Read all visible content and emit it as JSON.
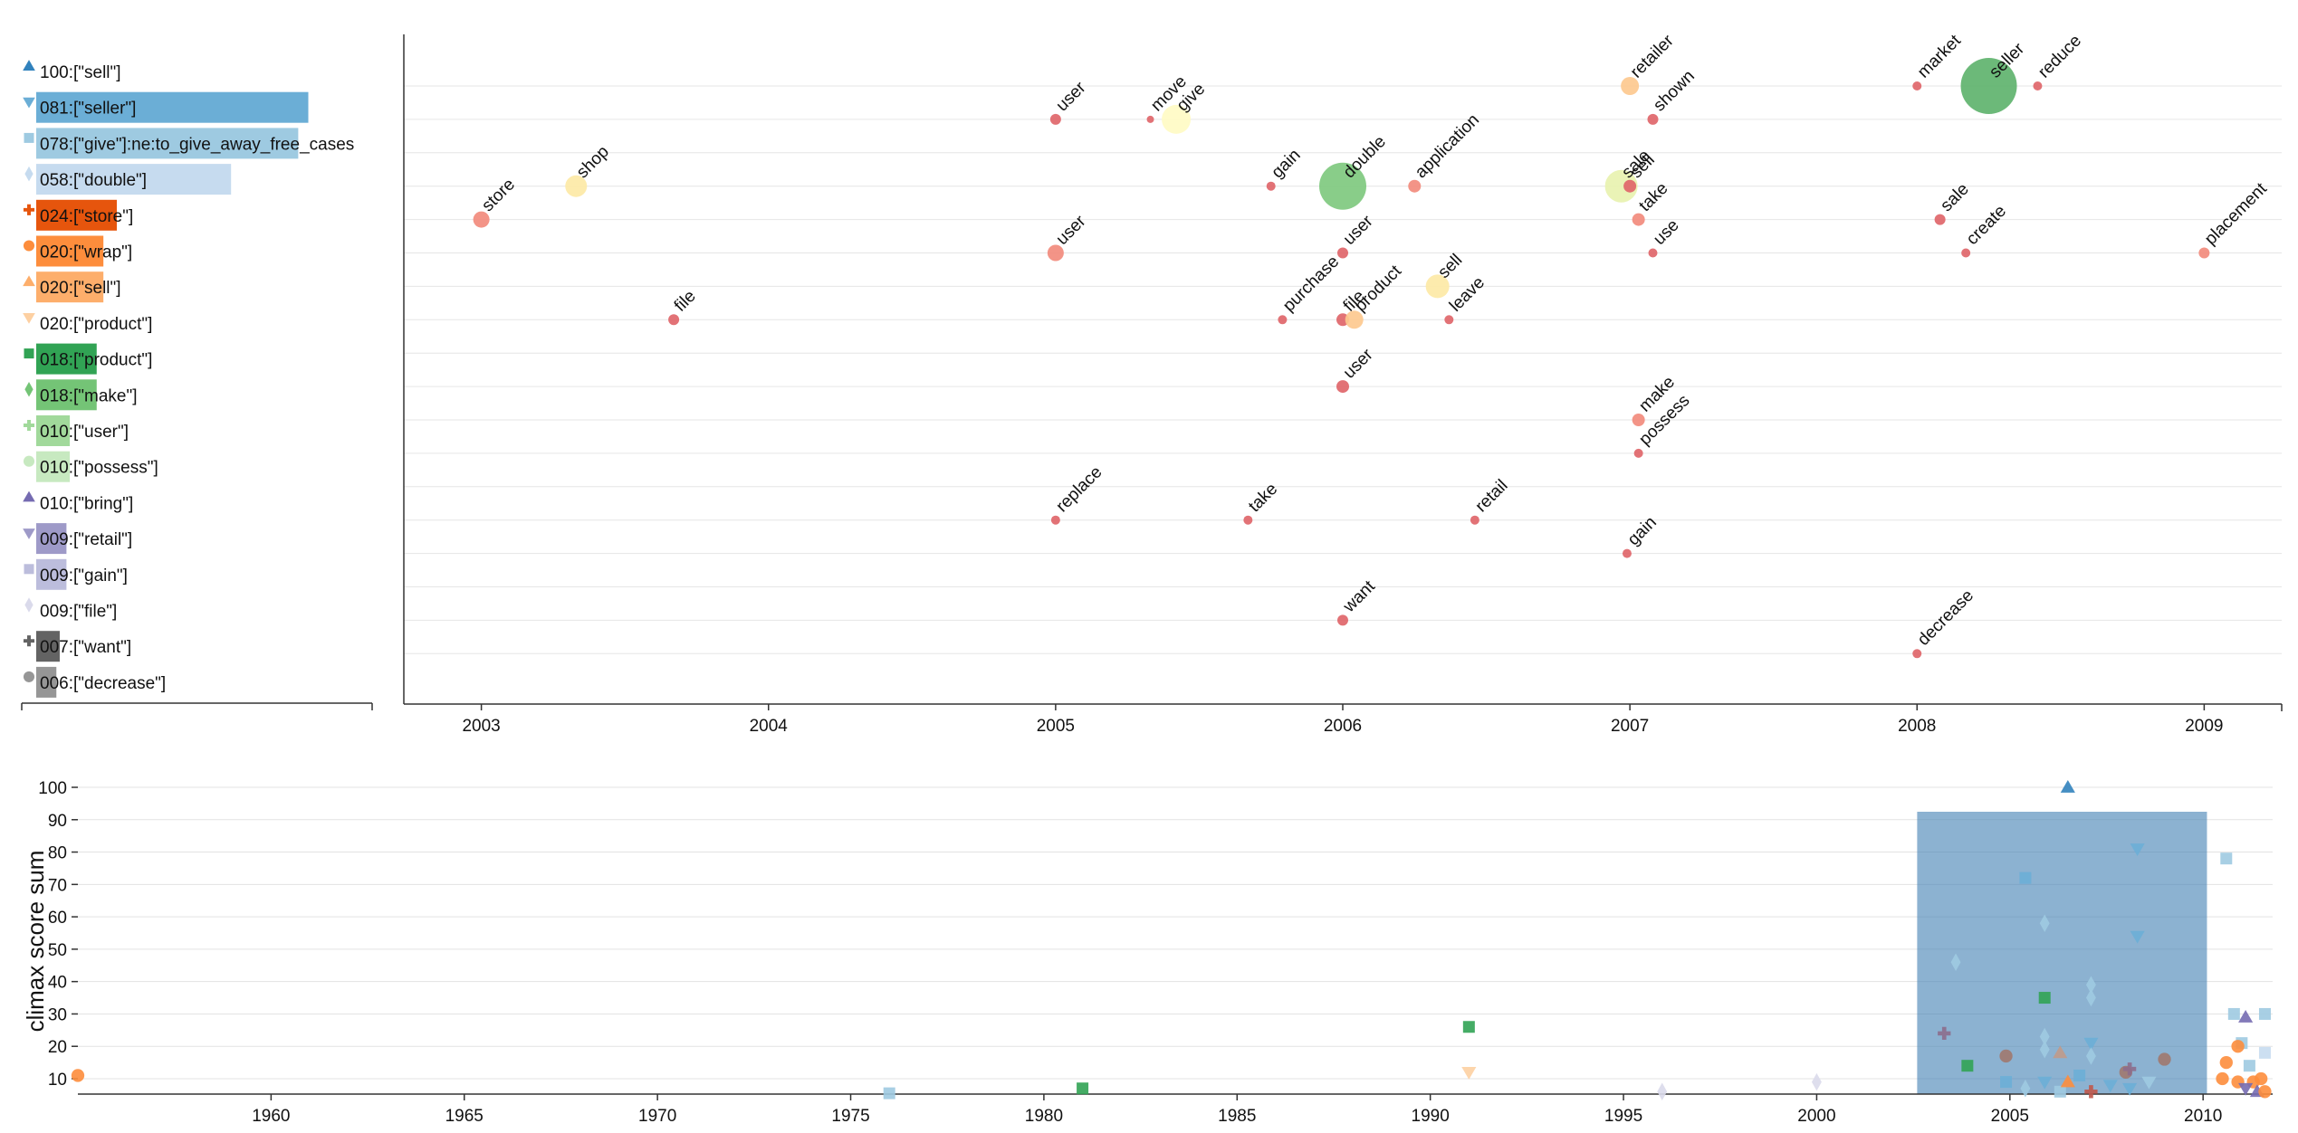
{
  "chart_data": [
    {
      "type": "bar",
      "name": "legend-bar-list",
      "items": [
        {
          "label": "100:[\"sell\"]",
          "value": 100,
          "shape": "triangle-up",
          "color": "#3182bd",
          "bar": false
        },
        {
          "label": "081:[\"seller\"]",
          "value": 81,
          "shape": "triangle-down",
          "color": "#6baed6",
          "bar": true
        },
        {
          "label": "078:[\"give\"]:ne:to_give_away_free_cases",
          "value": 78,
          "shape": "square",
          "color": "#9ecae1",
          "bar": true
        },
        {
          "label": "058:[\"double\"]",
          "value": 58,
          "shape": "diamond",
          "color": "#c6dbef",
          "bar": true
        },
        {
          "label": "024:[\"store\"]",
          "value": 24,
          "shape": "cross",
          "color": "#e6550d",
          "bar": true
        },
        {
          "label": "020:[\"wrap\"]",
          "value": 20,
          "shape": "circle",
          "color": "#fd8d3c",
          "bar": true
        },
        {
          "label": "020:[\"sell\"]",
          "value": 20,
          "shape": "triangle-up",
          "color": "#fdae6b",
          "bar": true
        },
        {
          "label": "020:[\"product\"]",
          "value": 20,
          "shape": "triangle-down",
          "color": "#fdd0a2",
          "bar": false
        },
        {
          "label": "018:[\"product\"]",
          "value": 18,
          "shape": "square",
          "color": "#31a354",
          "bar": true
        },
        {
          "label": "018:[\"make\"]",
          "value": 18,
          "shape": "diamond",
          "color": "#74c476",
          "bar": true
        },
        {
          "label": "010:[\"user\"]",
          "value": 10,
          "shape": "cross",
          "color": "#a1d99b",
          "bar": true
        },
        {
          "label": "010:[\"possess\"]",
          "value": 10,
          "shape": "circle",
          "color": "#c7e9c0",
          "bar": true
        },
        {
          "label": "010:[\"bring\"]",
          "value": 10,
          "shape": "triangle-up",
          "color": "#756bb1",
          "bar": false
        },
        {
          "label": "009:[\"retail\"]",
          "value": 9,
          "shape": "triangle-down",
          "color": "#9e9ac8",
          "bar": true
        },
        {
          "label": "009:[\"gain\"]",
          "value": 9,
          "shape": "square",
          "color": "#bcbddc",
          "bar": true
        },
        {
          "label": "009:[\"file\"]",
          "value": 9,
          "shape": "diamond",
          "color": "#dadaeb",
          "bar": false
        },
        {
          "label": "007:[\"want\"]",
          "value": 7,
          "shape": "cross",
          "color": "#636363",
          "bar": true
        },
        {
          "label": "006:[\"decrease\"]",
          "value": 6,
          "shape": "circle",
          "color": "#969696",
          "bar": true
        }
      ]
    },
    {
      "type": "scatter",
      "name": "timeline-bubbles",
      "xlim": [
        2002.73,
        2009.27
      ],
      "xticks": [
        "2003",
        "2004",
        "2005",
        "2006",
        "2007",
        "2008",
        "2009"
      ],
      "points": [
        {
          "x": 2003.0,
          "row": 5,
          "r": 9,
          "label": "store",
          "color": "#f28b7d"
        },
        {
          "x": 2003.33,
          "row": 4,
          "r": 12,
          "label": "shop",
          "color": "#fde9a6"
        },
        {
          "x": 2003.67,
          "row": 8,
          "r": 6,
          "label": "file",
          "color": "#e0666a"
        },
        {
          "x": 2005.0,
          "row": 2,
          "r": 6,
          "label": "user",
          "color": "#e0666a"
        },
        {
          "x": 2005.33,
          "row": 2,
          "r": 4,
          "label": "move",
          "color": "#e0666a"
        },
        {
          "x": 2005.42,
          "row": 2,
          "r": 16,
          "label": "give",
          "color": "#fffbc4"
        },
        {
          "x": 2005.0,
          "row": 6,
          "r": 9,
          "label": "user",
          "color": "#f28b7d"
        },
        {
          "x": 2005.0,
          "row": 14,
          "r": 5,
          "label": "replace",
          "color": "#e0666a"
        },
        {
          "x": 2005.75,
          "row": 4,
          "r": 5,
          "label": "gain",
          "color": "#e0666a"
        },
        {
          "x": 2005.67,
          "row": 14,
          "r": 5,
          "label": "take",
          "color": "#e0666a"
        },
        {
          "x": 2005.79,
          "row": 8,
          "r": 5,
          "label": "purchase",
          "color": "#e0666a"
        },
        {
          "x": 2006.0,
          "row": 4,
          "r": 26,
          "label": "double",
          "color": "#7fc97f"
        },
        {
          "x": 2006.0,
          "row": 6,
          "r": 6,
          "label": "user",
          "color": "#e0666a"
        },
        {
          "x": 2006.0,
          "row": 8,
          "r": 7,
          "label": "file",
          "color": "#e0666a"
        },
        {
          "x": 2006.04,
          "row": 8,
          "r": 10,
          "label": "product",
          "color": "#fdc98f"
        },
        {
          "x": 2006.0,
          "row": 10,
          "r": 7,
          "label": "user",
          "color": "#e0666a"
        },
        {
          "x": 2006.0,
          "row": 17,
          "r": 6,
          "label": "want",
          "color": "#e0666a"
        },
        {
          "x": 2006.25,
          "row": 4,
          "r": 7,
          "label": "application",
          "color": "#f28b7d"
        },
        {
          "x": 2006.33,
          "row": 7,
          "r": 13,
          "label": "sell",
          "color": "#fde9a6"
        },
        {
          "x": 2006.37,
          "row": 8,
          "r": 5,
          "label": "leave",
          "color": "#e0666a"
        },
        {
          "x": 2006.46,
          "row": 14,
          "r": 5,
          "label": "retail",
          "color": "#e0666a"
        },
        {
          "x": 2007.0,
          "row": 1,
          "r": 10,
          "label": "retailer",
          "color": "#fdc98f"
        },
        {
          "x": 2007.08,
          "row": 2,
          "r": 6,
          "label": "shown",
          "color": "#e0666a"
        },
        {
          "x": 2006.97,
          "row": 4,
          "r": 18,
          "label": "sale",
          "color": "#e8f2b0"
        },
        {
          "x": 2007.0,
          "row": 4,
          "r": 7,
          "label": "sell",
          "color": "#e0666a"
        },
        {
          "x": 2007.03,
          "row": 5,
          "r": 7,
          "label": "take",
          "color": "#f28b7d"
        },
        {
          "x": 2007.08,
          "row": 6,
          "r": 5,
          "label": "use",
          "color": "#e0666a"
        },
        {
          "x": 2007.03,
          "row": 11,
          "r": 7,
          "label": "make",
          "color": "#f28b7d"
        },
        {
          "x": 2007.03,
          "row": 12,
          "r": 5,
          "label": "possess",
          "color": "#e0666a"
        },
        {
          "x": 2006.99,
          "row": 15,
          "r": 5,
          "label": "gain",
          "color": "#e0666a"
        },
        {
          "x": 2008.0,
          "row": 1,
          "r": 5,
          "label": "market",
          "color": "#e0666a"
        },
        {
          "x": 2008.25,
          "row": 1,
          "r": 31,
          "label": "seller",
          "color": "#5fb36e"
        },
        {
          "x": 2008.42,
          "row": 1,
          "r": 5,
          "label": "reduce",
          "color": "#e0666a"
        },
        {
          "x": 2008.08,
          "row": 5,
          "r": 6,
          "label": "sale",
          "color": "#e0666a"
        },
        {
          "x": 2008.17,
          "row": 6,
          "r": 5,
          "label": "create",
          "color": "#e0666a"
        },
        {
          "x": 2009.0,
          "row": 6,
          "r": 6,
          "label": "placement",
          "color": "#f28b7d"
        },
        {
          "x": 2008.0,
          "row": 18,
          "r": 5,
          "label": "decrease",
          "color": "#e0666a"
        }
      ]
    },
    {
      "type": "scatter",
      "name": "climax-scatter",
      "ylabel": "climax score sum",
      "xlim": [
        1955,
        2011.8
      ],
      "ylim": [
        5,
        100
      ],
      "xticks": [
        "1960",
        "1965",
        "1970",
        "1975",
        "1980",
        "1985",
        "1990",
        "1995",
        "2000",
        "2005",
        "2010"
      ],
      "yticks": [
        "100",
        "90",
        "80",
        "70",
        "60",
        "50",
        "40",
        "30",
        "20",
        "10"
      ],
      "brush": [
        2002.6,
        2010.1
      ],
      "points": [
        {
          "x": 1955.0,
          "y": 11,
          "shape": "circle",
          "color": "#fd8d3c"
        },
        {
          "x": 1976.0,
          "y": 5.5,
          "shape": "square",
          "color": "#9ecae1"
        },
        {
          "x": 1981.0,
          "y": 7,
          "shape": "square",
          "color": "#31a354"
        },
        {
          "x": 1991.0,
          "y": 26,
          "shape": "square",
          "color": "#31a354"
        },
        {
          "x": 1991.0,
          "y": 12,
          "shape": "triangle-down",
          "color": "#fdd0a2"
        },
        {
          "x": 1996.0,
          "y": 6,
          "shape": "diamond",
          "color": "#dadaeb"
        },
        {
          "x": 2000.0,
          "y": 9,
          "shape": "diamond",
          "color": "#dadaeb"
        },
        {
          "x": 2006.5,
          "y": 100,
          "shape": "triangle-up",
          "color": "#3182bd"
        },
        {
          "x": 2008.3,
          "y": 81,
          "shape": "triangle-down",
          "color": "#6baed6"
        },
        {
          "x": 2008.3,
          "y": 54,
          "shape": "triangle-down",
          "color": "#6baed6"
        },
        {
          "x": 2005.4,
          "y": 72,
          "shape": "square",
          "color": "#6baed6"
        },
        {
          "x": 2005.9,
          "y": 58,
          "shape": "diamond",
          "color": "#9ecae1"
        },
        {
          "x": 2003.6,
          "y": 46,
          "shape": "diamond",
          "color": "#9ecae1"
        },
        {
          "x": 2007.1,
          "y": 39,
          "shape": "diamond",
          "color": "#9ecae1"
        },
        {
          "x": 2007.1,
          "y": 35,
          "shape": "diamond",
          "color": "#9ecae1"
        },
        {
          "x": 2005.9,
          "y": 35,
          "shape": "square",
          "color": "#31a354"
        },
        {
          "x": 2003.3,
          "y": 24,
          "shape": "cross",
          "color": "#8c6d8c"
        },
        {
          "x": 2003.9,
          "y": 14,
          "shape": "square",
          "color": "#31a354"
        },
        {
          "x": 2004.9,
          "y": 17,
          "shape": "circle",
          "color": "#a0786e"
        },
        {
          "x": 2005.9,
          "y": 23,
          "shape": "diamond",
          "color": "#9ecae1"
        },
        {
          "x": 2005.9,
          "y": 19,
          "shape": "diamond",
          "color": "#9ecae1"
        },
        {
          "x": 2006.3,
          "y": 18,
          "shape": "triangle-up",
          "color": "#c09a8a"
        },
        {
          "x": 2007.1,
          "y": 21,
          "shape": "triangle-down",
          "color": "#6baed6"
        },
        {
          "x": 2007.1,
          "y": 17,
          "shape": "diamond",
          "color": "#9ecae1"
        },
        {
          "x": 2008.0,
          "y": 12,
          "shape": "circle",
          "color": "#a0786e"
        },
        {
          "x": 2008.1,
          "y": 13,
          "shape": "cross",
          "color": "#8c6d8c"
        },
        {
          "x": 2009.0,
          "y": 16,
          "shape": "circle",
          "color": "#a0786e"
        },
        {
          "x": 2004.9,
          "y": 9,
          "shape": "square",
          "color": "#6baed6"
        },
        {
          "x": 2005.4,
          "y": 7,
          "shape": "diamond",
          "color": "#9ecae1"
        },
        {
          "x": 2005.9,
          "y": 9,
          "shape": "triangle-down",
          "color": "#6baed6"
        },
        {
          "x": 2006.3,
          "y": 6,
          "shape": "square",
          "color": "#9ecae1"
        },
        {
          "x": 2006.5,
          "y": 9,
          "shape": "triangle-up",
          "color": "#fd8d3c"
        },
        {
          "x": 2006.8,
          "y": 11,
          "shape": "square",
          "color": "#6baed6"
        },
        {
          "x": 2007.1,
          "y": 6,
          "shape": "cross",
          "color": "#c0564a"
        },
        {
          "x": 2007.6,
          "y": 8,
          "shape": "triangle-down",
          "color": "#6baed6"
        },
        {
          "x": 2008.1,
          "y": 7,
          "shape": "triangle-down",
          "color": "#6baed6"
        },
        {
          "x": 2008.6,
          "y": 9,
          "shape": "triangle-down",
          "color": "#9ecae1"
        },
        {
          "x": 2010.6,
          "y": 78,
          "shape": "square",
          "color": "#9ecae1"
        },
        {
          "x": 2011.6,
          "y": 30,
          "shape": "square",
          "color": "#9ecae1"
        },
        {
          "x": 2011.1,
          "y": 29,
          "shape": "triangle-up",
          "color": "#756bb1"
        },
        {
          "x": 2010.8,
          "y": 30,
          "shape": "square",
          "color": "#9ecae1"
        },
        {
          "x": 2011.0,
          "y": 21,
          "shape": "square",
          "color": "#9ecae1"
        },
        {
          "x": 2010.9,
          "y": 20,
          "shape": "circle",
          "color": "#fd8d3c"
        },
        {
          "x": 2011.6,
          "y": 18,
          "shape": "square",
          "color": "#c6dbef"
        },
        {
          "x": 2010.6,
          "y": 15,
          "shape": "circle",
          "color": "#fd8d3c"
        },
        {
          "x": 2011.2,
          "y": 14,
          "shape": "square",
          "color": "#9ecae1"
        },
        {
          "x": 2010.5,
          "y": 10,
          "shape": "circle",
          "color": "#fd8d3c"
        },
        {
          "x": 2010.9,
          "y": 9,
          "shape": "circle",
          "color": "#fd8d3c"
        },
        {
          "x": 2011.3,
          "y": 9,
          "shape": "circle",
          "color": "#fd8d3c"
        },
        {
          "x": 2011.5,
          "y": 10,
          "shape": "circle",
          "color": "#fd8d3c"
        },
        {
          "x": 2011.1,
          "y": 7,
          "shape": "triangle-down",
          "color": "#756bb1"
        },
        {
          "x": 2011.4,
          "y": 6,
          "shape": "triangle-up",
          "color": "#756bb1"
        },
        {
          "x": 2011.6,
          "y": 6,
          "shape": "circle",
          "color": "#fd8d3c"
        }
      ]
    }
  ]
}
